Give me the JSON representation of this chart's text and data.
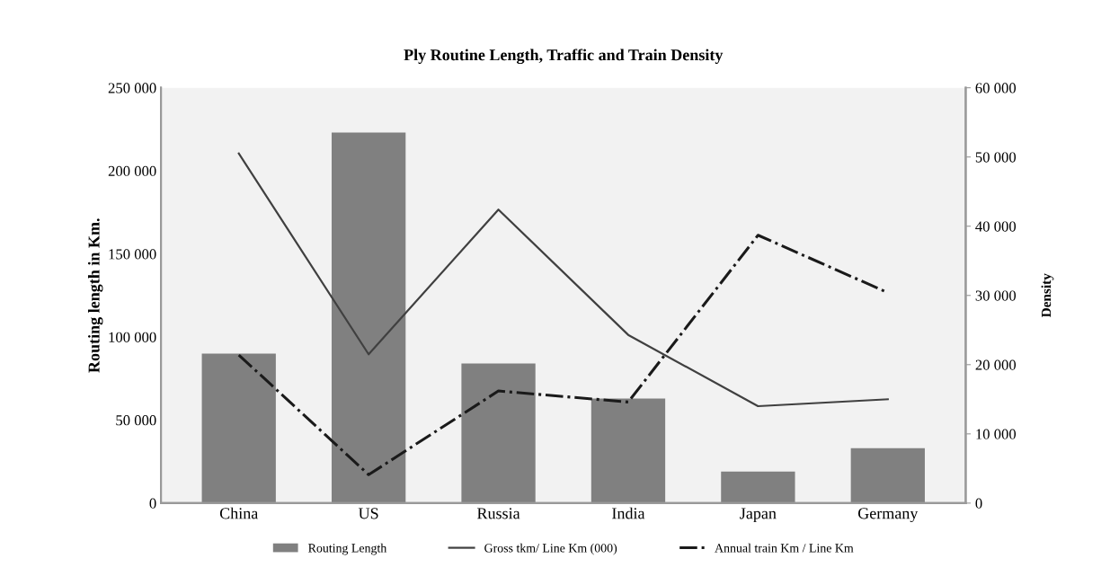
{
  "chart_data": {
    "type": "bar",
    "title": "Ply Routine Length, Traffic and Train Density",
    "ylabel": "Routing length in Km.",
    "y2label": "Density",
    "categories": [
      "China",
      "US",
      "Russia",
      "India",
      "Japan",
      "Germany"
    ],
    "series": [
      {
        "name": "Routing Length",
        "color": "#808080",
        "values": [
          90000,
          223000,
          84000,
          63000,
          19000,
          33000
        ]
      },
      {
        "name": "Gross tkm/ Line Km (000)",
        "type": "line",
        "axis": "y2",
        "color": "#404040",
        "line_style": "solid",
        "values": [
          50500,
          21500,
          42400,
          24300,
          14000,
          15000
        ]
      },
      {
        "name": "Annual train Km / Line Km",
        "type": "line",
        "axis": "y2",
        "color": "#1a1a1a",
        "line_style": "dashdot",
        "values": [
          21400,
          4100,
          16200,
          14600,
          38700,
          30400
        ]
      }
    ],
    "ylim": [
      0,
      250000
    ],
    "yticks": [
      0,
      {
        "value": 50000,
        "label": "50 000"
      },
      {
        "value": 100000,
        "label": "100 000"
      },
      {
        "value": 150000,
        "label": "150 000"
      },
      {
        "value": 200000,
        "label": "200 000"
      },
      {
        "value": 250000,
        "label": "250 000"
      }
    ],
    "y2lim": [
      0,
      60000
    ],
    "y2ticks": [
      0,
      {
        "value": 10000,
        "label": "10 000"
      },
      {
        "value": 20000,
        "label": "20 000"
      },
      {
        "value": 30000,
        "label": "30 000"
      },
      {
        "value": 40000,
        "label": "40 000"
      },
      {
        "value": 50000,
        "label": "50 000"
      },
      {
        "value": 60000,
        "label": "60 000"
      }
    ],
    "grid": false,
    "legend": "bottom"
  }
}
